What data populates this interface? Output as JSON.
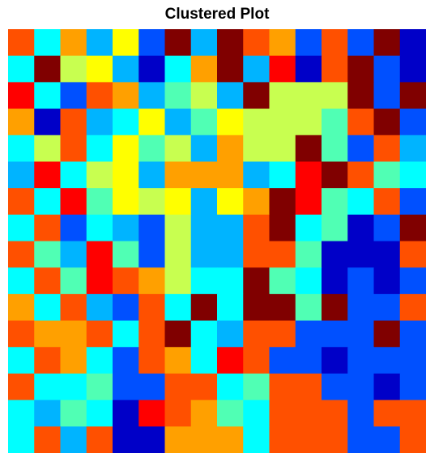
{
  "chart_data": {
    "type": "heatmap",
    "title": "Clustered Plot",
    "colors": [
      "#0000c8",
      "#0050ff",
      "#00b4ff",
      "#00ffff",
      "#50ffb4",
      "#c8ff50",
      "#ffff00",
      "#ffa000",
      "#ff5000",
      "#ff0000",
      "#800000"
    ],
    "z": [
      [
        8,
        3,
        7,
        2,
        6,
        1,
        10,
        2,
        10,
        8,
        7,
        1,
        8,
        1,
        10,
        0
      ],
      [
        3,
        10,
        5,
        6,
        2,
        0,
        3,
        7,
        10,
        2,
        9,
        0,
        8,
        10,
        1,
        0
      ],
      [
        9,
        3,
        1,
        8,
        7,
        2,
        4,
        5,
        2,
        10,
        5,
        5,
        5,
        10,
        1,
        10
      ],
      [
        7,
        0,
        8,
        2,
        3,
        6,
        2,
        4,
        6,
        5,
        5,
        5,
        4,
        8,
        10,
        1
      ],
      [
        3,
        5,
        8,
        3,
        6,
        4,
        5,
        2,
        7,
        5,
        5,
        10,
        4,
        1,
        8,
        2
      ],
      [
        2,
        9,
        3,
        5,
        6,
        2,
        7,
        7,
        7,
        2,
        3,
        9,
        10,
        8,
        4,
        3
      ],
      [
        8,
        3,
        9,
        4,
        6,
        5,
        6,
        2,
        6,
        7,
        10,
        9,
        4,
        3,
        8,
        1
      ],
      [
        3,
        8,
        1,
        3,
        2,
        1,
        5,
        2,
        2,
        8,
        10,
        3,
        4,
        0,
        1,
        10
      ],
      [
        8,
        4,
        2,
        9,
        4,
        1,
        5,
        2,
        2,
        8,
        8,
        4,
        0,
        0,
        0,
        8
      ],
      [
        3,
        8,
        4,
        9,
        8,
        7,
        5,
        3,
        3,
        10,
        4,
        3,
        0,
        1,
        0,
        1
      ],
      [
        7,
        3,
        8,
        2,
        1,
        8,
        3,
        10,
        3,
        10,
        10,
        4,
        10,
        1,
        1,
        8
      ],
      [
        8,
        7,
        7,
        8,
        3,
        8,
        10,
        3,
        2,
        8,
        8,
        1,
        1,
        1,
        10,
        1
      ],
      [
        3,
        8,
        7,
        3,
        1,
        8,
        7,
        3,
        9,
        8,
        1,
        1,
        0,
        1,
        1,
        1
      ],
      [
        8,
        3,
        3,
        4,
        1,
        1,
        8,
        8,
        3,
        4,
        8,
        8,
        1,
        1,
        0,
        1
      ],
      [
        3,
        2,
        4,
        3,
        0,
        9,
        8,
        7,
        4,
        3,
        8,
        8,
        8,
        1,
        8,
        8
      ],
      [
        3,
        8,
        2,
        8,
        0,
        0,
        7,
        7,
        7,
        3,
        8,
        8,
        8,
        1,
        1,
        8
      ]
    ]
  }
}
